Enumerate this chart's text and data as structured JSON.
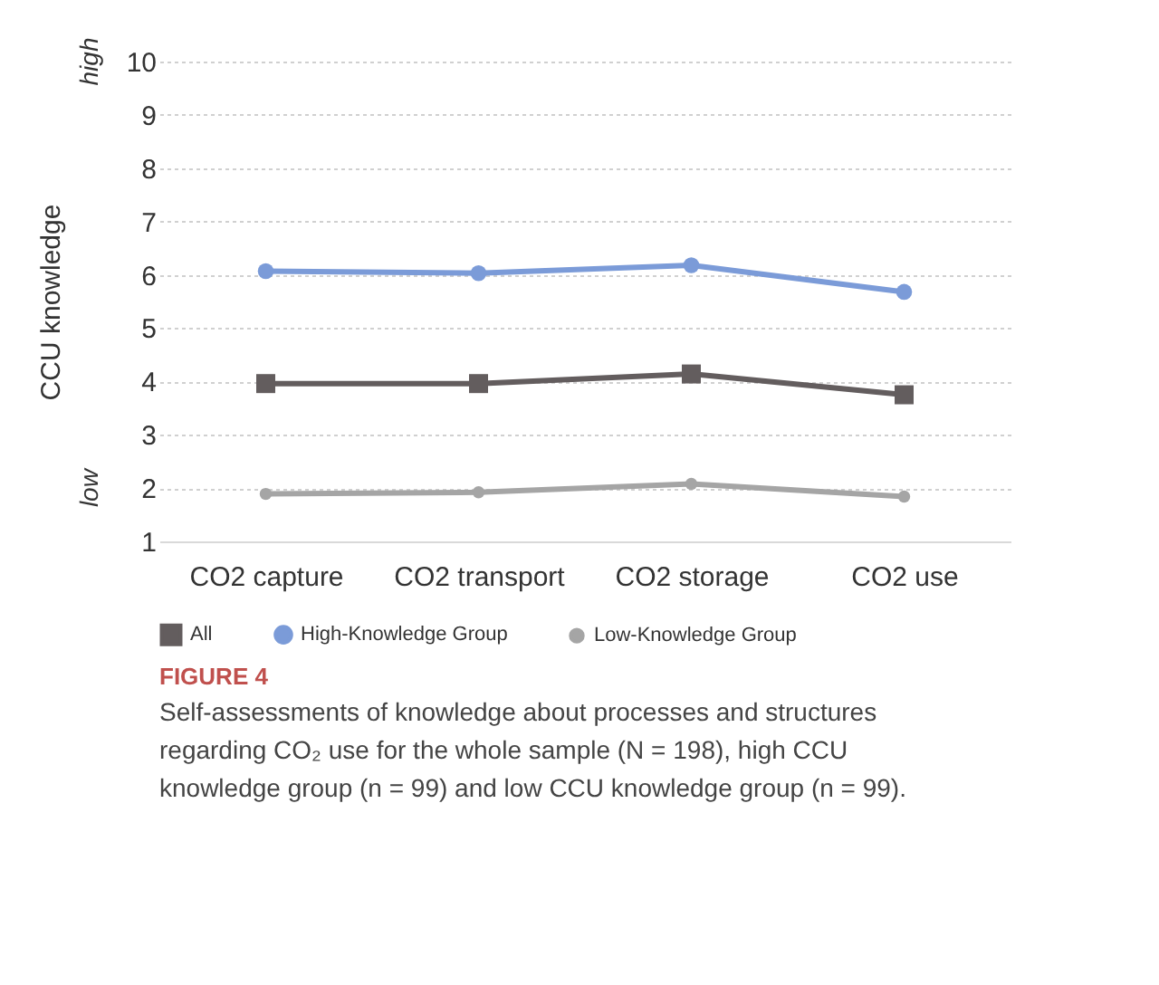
{
  "chart_data": {
    "type": "line",
    "ylabel": "CCU knowledge",
    "categories": [
      "CO2 capture",
      "CO2 transport",
      "CO2 storage",
      "CO2 use"
    ],
    "series": [
      {
        "name": "All",
        "color": "#635d5e",
        "marker": "square",
        "values": [
          3.96,
          3.96,
          4.14,
          3.75
        ]
      },
      {
        "name": "High-Knowledge Group",
        "color": "#7b9bd8",
        "marker": "circle",
        "values": [
          6.07,
          6.03,
          6.18,
          5.68
        ]
      },
      {
        "name": "Low-Knowledge Group",
        "color": "#a5a5a5",
        "marker": "circle",
        "values": [
          1.89,
          1.92,
          2.08,
          1.84
        ]
      }
    ],
    "ylim": [
      1,
      10
    ],
    "yticks": [
      1,
      2,
      3,
      4,
      5,
      6,
      7,
      8,
      9,
      10
    ],
    "grid": "y",
    "legend": "bottom",
    "line_style": "solid",
    "annotations": [
      "high",
      "low",
      "FIGURE 4",
      "Self-assessments of knowledge about processes and structures regarding CO₂ use for the whole sample (N = 198), high CCU knowledge group (n = 99) and low CCU knowledge group (n = 99)."
    ]
  }
}
